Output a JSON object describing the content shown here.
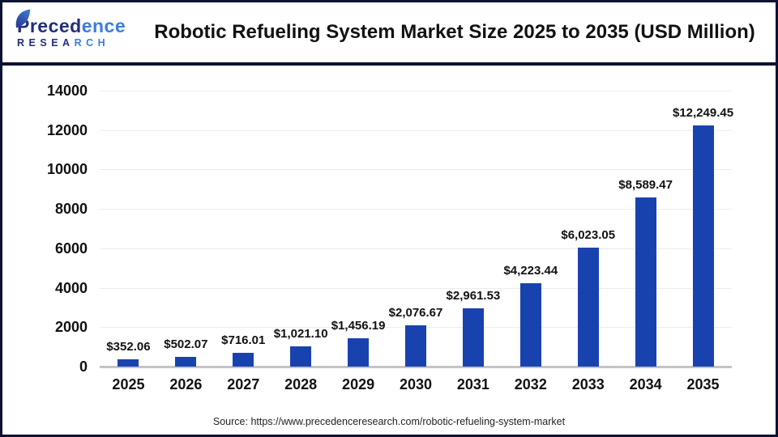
{
  "header": {
    "logo": {
      "brand_dark": "Preced",
      "brand_light": "ence",
      "sub_dark": "RESEA",
      "sub_light": "RCH",
      "dark_color": "#232e7a",
      "light_color": "#3b7ddd"
    },
    "title": "Robotic Refueling System Market Size 2025 to 2035 (USD Million)"
  },
  "chart_data": {
    "type": "bar",
    "title": "Robotic Refueling System Market Size 2025 to 2035 (USD Million)",
    "categories": [
      "2025",
      "2026",
      "2027",
      "2028",
      "2029",
      "2030",
      "2031",
      "2032",
      "2033",
      "2034",
      "2035"
    ],
    "values": [
      352.06,
      502.07,
      716.01,
      1021.1,
      1456.19,
      2076.67,
      2961.53,
      4223.44,
      6023.05,
      8589.47,
      12249.45
    ],
    "value_labels": [
      "$352.06",
      "$502.07",
      "$716.01",
      "$1,021.10",
      "$1,456.19",
      "$2,076.67",
      "$2,961.53",
      "$4,223.44",
      "$6,023.05",
      "$8,589.47",
      "$12,249.45"
    ],
    "xlabel": "",
    "ylabel": "",
    "ylim": [
      0,
      14000
    ],
    "yticks": [
      0,
      2000,
      4000,
      6000,
      8000,
      10000,
      12000,
      14000
    ],
    "grid": true,
    "legend": "none",
    "bar_color": "#1843af"
  },
  "footer": {
    "source": "Source: https://www.precedenceresearch.com/robotic-refueling-system-market"
  }
}
